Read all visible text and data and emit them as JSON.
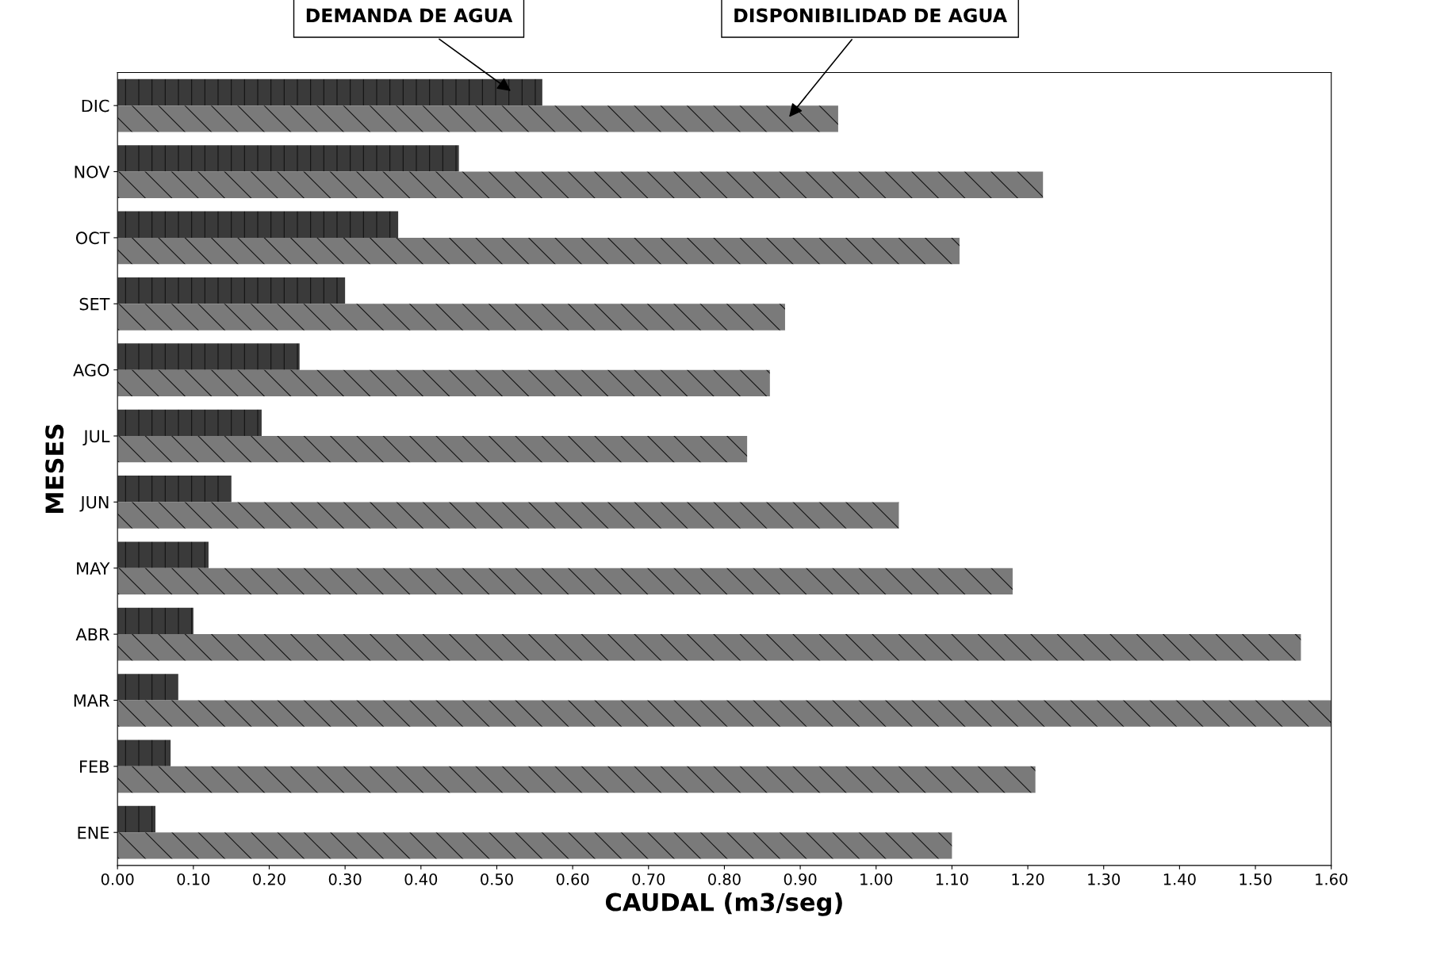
{
  "chart_data": {
    "type": "bar",
    "orientation": "horizontal",
    "xlabel": "CAUDAL (m3/seg)",
    "ylabel": "MESES",
    "categories": [
      "DIC",
      "NOV",
      "OCT",
      "SET",
      "AGO",
      "JUL",
      "JUN",
      "MAY",
      "ABR",
      "MAR",
      "FEB",
      "ENE"
    ],
    "series": [
      {
        "name": "DEMANDA DE AGUA",
        "color": "#3a3a3a",
        "values": [
          0.56,
          0.45,
          0.37,
          0.3,
          0.24,
          0.19,
          0.15,
          0.12,
          0.1,
          0.08,
          0.07,
          0.05
        ]
      },
      {
        "name": "DISPONIBILIDAD DE AGUA",
        "color": "#7a7a7a",
        "values": [
          0.95,
          1.22,
          1.11,
          0.88,
          0.86,
          0.83,
          1.03,
          1.18,
          1.56,
          1.6,
          1.21,
          1.1
        ]
      }
    ],
    "xlim": [
      0,
      1.6
    ],
    "xticks": [
      {
        "value": 0,
        "label": "0.00"
      },
      {
        "value": 0.1,
        "label": "0.10"
      },
      {
        "value": 0.2,
        "label": "0.20"
      },
      {
        "value": 0.3,
        "label": "0.30"
      },
      {
        "value": 0.4,
        "label": "0.40"
      },
      {
        "value": 0.5,
        "label": "0.50"
      },
      {
        "value": 0.6,
        "label": "0.60"
      },
      {
        "value": 0.7,
        "label": "0.70"
      },
      {
        "value": 0.8,
        "label": "0.80"
      },
      {
        "value": 0.9,
        "label": "0.90"
      },
      {
        "value": 1,
        "label": "1.00"
      },
      {
        "value": 1.1,
        "label": "1.10"
      },
      {
        "value": 1.2,
        "label": "1.20"
      },
      {
        "value": 1.3,
        "label": "1.30"
      },
      {
        "value": 1.4,
        "label": "1.40"
      },
      {
        "value": 1.5,
        "label": "1.50"
      },
      {
        "value": 1.6,
        "label": "1.60"
      }
    ],
    "grid": false,
    "legend": false
  }
}
